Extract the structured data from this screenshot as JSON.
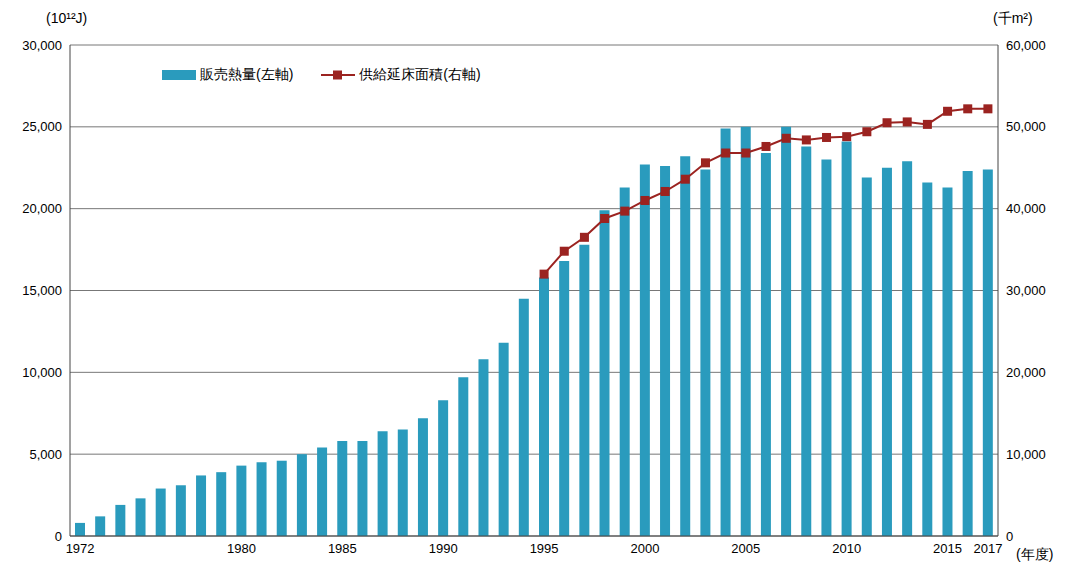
{
  "chart_data": {
    "type": "bar",
    "categories": [
      "1972",
      null,
      null,
      null,
      null,
      null,
      null,
      null,
      "1980",
      null,
      null,
      null,
      null,
      "1985",
      null,
      null,
      null,
      null,
      "1990",
      null,
      null,
      null,
      null,
      "1995",
      null,
      null,
      null,
      null,
      "2000",
      null,
      null,
      null,
      null,
      "2005",
      null,
      null,
      null,
      null,
      "2010",
      null,
      null,
      null,
      null,
      "2015",
      null,
      "2017"
    ],
    "x_label": "(年度)",
    "y_label": "(10¹²J)",
    "y2_label": "(千m²)",
    "series": [
      {
        "name": "販売熱量(左軸)",
        "type": "bar",
        "color": "#2a9bbd",
        "values": [
          800,
          1200,
          1900,
          2300,
          2900,
          3100,
          3700,
          3900,
          4300,
          4500,
          4600,
          5000,
          5400,
          5800,
          5800,
          6400,
          6500,
          7200,
          8300,
          9700,
          10800,
          11800,
          14500,
          15800,
          16800,
          17800,
          19900,
          21300,
          22700,
          22600,
          23200,
          22400,
          24900,
          25000,
          23400,
          25000,
          23800,
          23000,
          24100,
          21900,
          22500,
          22900,
          21600,
          21300,
          22300,
          22400
        ]
      },
      {
        "name": "供給延床面積(右軸)",
        "type": "line",
        "axis": "y2",
        "color": "#9b2320",
        "marker": "square",
        "values": [
          null,
          null,
          null,
          null,
          null,
          null,
          null,
          null,
          null,
          null,
          null,
          null,
          null,
          null,
          null,
          null,
          null,
          null,
          null,
          null,
          null,
          null,
          null,
          32000,
          34800,
          36500,
          38800,
          39700,
          41000,
          42100,
          43600,
          45600,
          46800,
          46800,
          47600,
          48600,
          48400,
          48700,
          48800,
          49400,
          50500,
          50600,
          50300,
          51900,
          52200,
          52200
        ]
      }
    ],
    "ylim": [
      0,
      30000
    ],
    "yticks": [
      0,
      {
        "value": 5000,
        "label": "5,000"
      },
      {
        "value": 10000,
        "label": "10,000"
      },
      {
        "value": 15000,
        "label": "15,000"
      },
      {
        "value": 20000,
        "label": "20,000"
      },
      {
        "value": 25000,
        "label": "25,000"
      },
      {
        "value": 30000,
        "label": "30,000"
      }
    ],
    "y2lim": [
      0,
      60000
    ],
    "y2ticks": [
      0,
      {
        "value": 10000,
        "label": "10,000"
      },
      {
        "value": 20000,
        "label": "20,000"
      },
      {
        "value": 30000,
        "label": "30,000"
      },
      {
        "value": 40000,
        "label": "40,000"
      },
      {
        "value": 50000,
        "label": "50,000"
      },
      {
        "value": 60000,
        "label": "60,000"
      }
    ],
    "grid": true,
    "legend": "upper left"
  }
}
